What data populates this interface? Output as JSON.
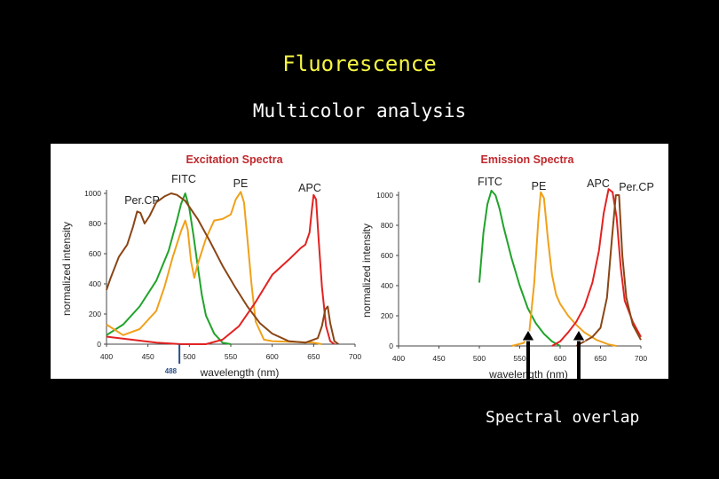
{
  "slide": {
    "title": "Fluorescence",
    "subtitle": "Multicolor analysis",
    "annotation": "Spectral overlap"
  },
  "colors": {
    "background": "#000000",
    "title": "#f5f542",
    "FITC": "#21a32b",
    "PE": "#f0a11a",
    "APC": "#e32222",
    "PerCP": "#8a4515",
    "chart_title": "#c0282d",
    "laser_line": "#2a4f87"
  },
  "chart_data": [
    {
      "type": "line",
      "title": "Excitation Spectra",
      "xlabel": "wavelength (nm)",
      "ylabel": "normalized intensity",
      "xlim": [
        400,
        700
      ],
      "ylim": [
        0,
        1000
      ],
      "xticks": [
        "400",
        "450",
        "500",
        "550",
        "600",
        "650",
        "700"
      ],
      "yticks": [
        "0",
        "200",
        "400",
        "600",
        "800",
        "1000"
      ],
      "marker": {
        "label": "488",
        "x": 488
      },
      "series": [
        {
          "name": "FITC",
          "color": "#21a32b",
          "points": [
            [
              400,
              60
            ],
            [
              420,
              130
            ],
            [
              440,
              250
            ],
            [
              460,
              420
            ],
            [
              475,
              620
            ],
            [
              485,
              820
            ],
            [
              490,
              930
            ],
            [
              495,
              1000
            ],
            [
              500,
              900
            ],
            [
              505,
              720
            ],
            [
              510,
              520
            ],
            [
              515,
              330
            ],
            [
              520,
              190
            ],
            [
              530,
              70
            ],
            [
              540,
              10
            ],
            [
              550,
              0
            ]
          ]
        },
        {
          "name": "PE",
          "color": "#f0a11a",
          "points": [
            [
              400,
              130
            ],
            [
              420,
              60
            ],
            [
              440,
              100
            ],
            [
              460,
              220
            ],
            [
              470,
              380
            ],
            [
              480,
              580
            ],
            [
              490,
              750
            ],
            [
              495,
              820
            ],
            [
              498,
              760
            ],
            [
              502,
              550
            ],
            [
              506,
              440
            ],
            [
              510,
              530
            ],
            [
              520,
              700
            ],
            [
              530,
              820
            ],
            [
              540,
              830
            ],
            [
              550,
              860
            ],
            [
              556,
              960
            ],
            [
              562,
              1010
            ],
            [
              566,
              940
            ],
            [
              570,
              700
            ],
            [
              575,
              400
            ],
            [
              580,
              150
            ],
            [
              590,
              30
            ],
            [
              600,
              20
            ],
            [
              650,
              10
            ],
            [
              660,
              0
            ]
          ]
        },
        {
          "name": "APC",
          "color": "#e32222",
          "points": [
            [
              400,
              50
            ],
            [
              430,
              30
            ],
            [
              460,
              10
            ],
            [
              490,
              0
            ],
            [
              520,
              0
            ],
            [
              540,
              30
            ],
            [
              560,
              120
            ],
            [
              580,
              280
            ],
            [
              600,
              460
            ],
            [
              620,
              560
            ],
            [
              635,
              640
            ],
            [
              640,
              660
            ],
            [
              645,
              740
            ],
            [
              648,
              900
            ],
            [
              650,
              990
            ],
            [
              653,
              960
            ],
            [
              656,
              700
            ],
            [
              660,
              380
            ],
            [
              665,
              120
            ],
            [
              670,
              20
            ],
            [
              675,
              0
            ]
          ]
        },
        {
          "name": "Per.CP",
          "color": "#8a4515",
          "points": [
            [
              400,
              360
            ],
            [
              405,
              440
            ],
            [
              415,
              580
            ],
            [
              425,
              660
            ],
            [
              432,
              780
            ],
            [
              437,
              880
            ],
            [
              441,
              870
            ],
            [
              446,
              800
            ],
            [
              452,
              850
            ],
            [
              460,
              940
            ],
            [
              470,
              980
            ],
            [
              478,
              1000
            ],
            [
              485,
              990
            ],
            [
              495,
              950
            ],
            [
              510,
              830
            ],
            [
              525,
              680
            ],
            [
              540,
              520
            ],
            [
              555,
              380
            ],
            [
              570,
              250
            ],
            [
              585,
              140
            ],
            [
              600,
              70
            ],
            [
              620,
              20
            ],
            [
              640,
              10
            ],
            [
              655,
              40
            ],
            [
              660,
              120
            ],
            [
              664,
              230
            ],
            [
              667,
              250
            ],
            [
              670,
              140
            ],
            [
              675,
              20
            ],
            [
              680,
              0
            ]
          ]
        }
      ]
    },
    {
      "type": "line",
      "title": "Emission Spectra",
      "xlabel": "wavelength (nm)",
      "ylabel": "normalized intensity",
      "xlim": [
        400,
        700
      ],
      "ylim": [
        0,
        1000
      ],
      "xticks": [
        "400",
        "450",
        "500",
        "550",
        "600",
        "650",
        "700"
      ],
      "yticks": [
        "0",
        "200",
        "400",
        "600",
        "800",
        "1000"
      ],
      "series": [
        {
          "name": "FITC",
          "color": "#21a32b",
          "points": [
            [
              500,
              420
            ],
            [
              505,
              750
            ],
            [
              510,
              940
            ],
            [
              515,
              1030
            ],
            [
              520,
              1000
            ],
            [
              525,
              910
            ],
            [
              530,
              790
            ],
            [
              540,
              580
            ],
            [
              550,
              400
            ],
            [
              560,
              250
            ],
            [
              570,
              150
            ],
            [
              580,
              80
            ],
            [
              590,
              30
            ],
            [
              600,
              0
            ]
          ]
        },
        {
          "name": "PE",
          "color": "#f0a11a",
          "points": [
            [
              540,
              0
            ],
            [
              555,
              20
            ],
            [
              562,
              100
            ],
            [
              568,
              420
            ],
            [
              573,
              830
            ],
            [
              576,
              1020
            ],
            [
              580,
              980
            ],
            [
              585,
              700
            ],
            [
              590,
              470
            ],
            [
              595,
              340
            ],
            [
              600,
              280
            ],
            [
              610,
              200
            ],
            [
              620,
              140
            ],
            [
              630,
              90
            ],
            [
              645,
              40
            ],
            [
              660,
              10
            ],
            [
              670,
              0
            ]
          ]
        },
        {
          "name": "APC",
          "color": "#e32222",
          "points": [
            [
              590,
              0
            ],
            [
              600,
              30
            ],
            [
              610,
              90
            ],
            [
              620,
              160
            ],
            [
              630,
              260
            ],
            [
              640,
              420
            ],
            [
              648,
              630
            ],
            [
              654,
              880
            ],
            [
              660,
              1040
            ],
            [
              665,
              1020
            ],
            [
              670,
              850
            ],
            [
              675,
              520
            ],
            [
              680,
              300
            ],
            [
              690,
              160
            ],
            [
              700,
              60
            ]
          ]
        },
        {
          "name": "Per.CP",
          "color": "#8a4515",
          "points": [
            [
              620,
              0
            ],
            [
              630,
              30
            ],
            [
              640,
              60
            ],
            [
              650,
              120
            ],
            [
              658,
              320
            ],
            [
              664,
              700
            ],
            [
              669,
              1000
            ],
            [
              673,
              1000
            ],
            [
              677,
              600
            ],
            [
              682,
              320
            ],
            [
              690,
              140
            ],
            [
              700,
              40
            ]
          ]
        }
      ],
      "label_positions_text": [
        "FITC",
        "PE",
        "APC",
        "Per.CP"
      ]
    }
  ]
}
